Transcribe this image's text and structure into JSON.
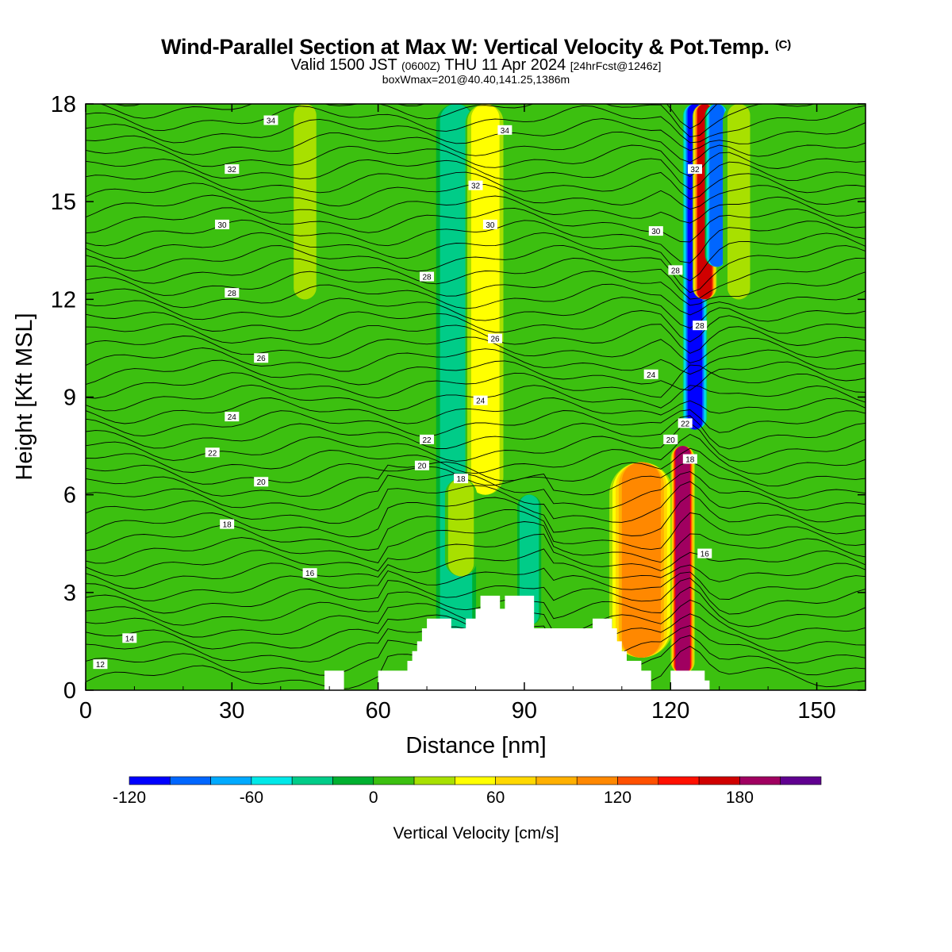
{
  "header": {
    "title": "Wind-Parallel Section at Max W: Vertical Velocity & Pot.Temp.",
    "title_tag": "(C)",
    "valid_prefix": "Valid 1500 JST",
    "valid_utc": "(0600Z)",
    "valid_date": "THU 11 Apr 2024",
    "forecast_tag": "[24hrFcst@1246z]",
    "box_info": "boxWmax=201@40.40,141.25,1386m"
  },
  "chart_data": {
    "type": "heatmap",
    "xlabel": "Distance [nm]",
    "ylabel": "Height [Kft MSL]",
    "xlim": [
      0,
      160
    ],
    "ylim": [
      0,
      18
    ],
    "xticks": [
      0,
      30,
      60,
      90,
      120,
      150
    ],
    "yticks": [
      0,
      3,
      6,
      9,
      12,
      15,
      18
    ],
    "background_velocity": 0,
    "velocity_features": [
      {
        "x": 76,
        "zmin": 0,
        "zmax": 18,
        "halfwidth": 2.5,
        "value": -40
      },
      {
        "x": 82,
        "zmin": 6,
        "zmax": 18,
        "halfwidth": 2.5,
        "value": 55
      },
      {
        "x": 77,
        "zmin": 3.5,
        "zmax": 6.5,
        "halfwidth": 2,
        "value": 35
      },
      {
        "x": 91,
        "zmin": 2,
        "zmax": 6,
        "halfwidth": 1.5,
        "value": -40
      },
      {
        "x": 114,
        "zmin": 1,
        "zmax": 7,
        "halfwidth": 4,
        "value": 110
      },
      {
        "x": 122.5,
        "zmin": 0.5,
        "zmax": 7.5,
        "halfwidth": 1.5,
        "value": 190
      },
      {
        "x": 125,
        "zmin": 8,
        "zmax": 18,
        "halfwidth": 1.5,
        "value": -110
      },
      {
        "x": 127,
        "zmin": 12,
        "zmax": 18,
        "halfwidth": 1.5,
        "value": 160
      },
      {
        "x": 129.5,
        "zmin": 13,
        "zmax": 18,
        "halfwidth": 1.5,
        "value": -100
      },
      {
        "x": 134,
        "zmin": 12,
        "zmax": 18,
        "halfwidth": 2,
        "value": 30
      },
      {
        "x": 45,
        "zmin": 12,
        "zmax": 18,
        "halfwidth": 2,
        "value": 25
      },
      {
        "x": 18,
        "zmin": 8,
        "zmax": 18,
        "halfwidth": 4,
        "value": 8
      }
    ],
    "terrain_profile": [
      [
        49,
        0.6
      ],
      [
        53,
        0.6
      ],
      [
        53,
        0
      ],
      [
        60,
        0
      ],
      [
        60,
        0.6
      ],
      [
        66,
        0.6
      ],
      [
        66,
        0.9
      ],
      [
        67,
        0.9
      ],
      [
        67,
        1.2
      ],
      [
        68,
        1.2
      ],
      [
        68,
        1.5
      ],
      [
        69,
        1.5
      ],
      [
        69,
        1.9
      ],
      [
        70,
        1.9
      ],
      [
        70,
        2.2
      ],
      [
        75,
        2.2
      ],
      [
        75,
        1.9
      ],
      [
        78,
        1.9
      ],
      [
        78,
        2.2
      ],
      [
        80,
        2.2
      ],
      [
        80,
        2.5
      ],
      [
        81,
        2.5
      ],
      [
        81,
        2.9
      ],
      [
        85,
        2.9
      ],
      [
        85,
        2.5
      ],
      [
        86,
        2.5
      ],
      [
        86,
        2.9
      ],
      [
        92,
        2.9
      ],
      [
        92,
        1.9
      ],
      [
        104,
        1.9
      ],
      [
        104,
        2.2
      ],
      [
        108,
        2.2
      ],
      [
        108,
        1.9
      ],
      [
        109,
        1.9
      ],
      [
        109,
        1.5
      ],
      [
        110,
        1.5
      ],
      [
        110,
        1.2
      ],
      [
        111,
        1.2
      ],
      [
        111,
        0.9
      ],
      [
        114,
        0.9
      ],
      [
        114,
        0.6
      ],
      [
        116,
        0.6
      ],
      [
        116,
        0
      ],
      [
        120,
        0
      ],
      [
        120,
        0.6
      ],
      [
        127,
        0.6
      ],
      [
        127,
        0.3
      ],
      [
        128,
        0.3
      ],
      [
        128,
        0
      ]
    ],
    "theta_contours": [
      12,
      14,
      16,
      18,
      20,
      22,
      24,
      26,
      28,
      30,
      32,
      34
    ],
    "theta_labels": [
      {
        "value": "34",
        "x": 38,
        "z": 17.5
      },
      {
        "value": "34",
        "x": 86,
        "z": 17.2
      },
      {
        "value": "32",
        "x": 30,
        "z": 16.0
      },
      {
        "value": "32",
        "x": 80,
        "z": 15.5
      },
      {
        "value": "32",
        "x": 125,
        "z": 16.0
      },
      {
        "value": "30",
        "x": 28,
        "z": 14.3
      },
      {
        "value": "30",
        "x": 83,
        "z": 14.3
      },
      {
        "value": "30",
        "x": 117,
        "z": 14.1
      },
      {
        "value": "28",
        "x": 70,
        "z": 12.7
      },
      {
        "value": "28",
        "x": 30,
        "z": 12.2
      },
      {
        "value": "28",
        "x": 121,
        "z": 12.9
      },
      {
        "value": "28",
        "x": 126,
        "z": 11.2
      },
      {
        "value": "26",
        "x": 36,
        "z": 10.2
      },
      {
        "value": "26",
        "x": 84,
        "z": 10.8
      },
      {
        "value": "24",
        "x": 30,
        "z": 8.4
      },
      {
        "value": "24",
        "x": 81,
        "z": 8.9
      },
      {
        "value": "24",
        "x": 116,
        "z": 9.7
      },
      {
        "value": "22",
        "x": 26,
        "z": 7.3
      },
      {
        "value": "22",
        "x": 70,
        "z": 7.7
      },
      {
        "value": "22",
        "x": 123,
        "z": 8.2
      },
      {
        "value": "20",
        "x": 36,
        "z": 6.4
      },
      {
        "value": "20",
        "x": 69,
        "z": 6.9
      },
      {
        "value": "20",
        "x": 120,
        "z": 7.7
      },
      {
        "value": "18",
        "x": 29,
        "z": 5.1
      },
      {
        "value": "18",
        "x": 77,
        "z": 6.5
      },
      {
        "value": "18",
        "x": 124,
        "z": 7.1
      },
      {
        "value": "16",
        "x": 46,
        "z": 3.6
      },
      {
        "value": "16",
        "x": 127,
        "z": 4.2
      },
      {
        "value": "14",
        "x": 9,
        "z": 1.6
      },
      {
        "value": "12",
        "x": 3,
        "z": 0.8
      }
    ],
    "colorbar": {
      "label": "Vertical Velocity [cm/s]",
      "boundaries": [
        -120,
        -100,
        -80,
        -60,
        -40,
        -20,
        0,
        20,
        40,
        60,
        80,
        100,
        120,
        140,
        160,
        180,
        200,
        220
      ],
      "tick_values": [
        -120,
        -60,
        0,
        60,
        120,
        180
      ],
      "tick_labels": [
        "-120",
        "-60",
        "0",
        "60",
        "120",
        "180"
      ],
      "colors": [
        "#0000ff",
        "#0066ff",
        "#00aaff",
        "#00e8e8",
        "#00cc88",
        "#00b030",
        "#3cc010",
        "#a8e000",
        "#ffff00",
        "#ffd800",
        "#ffb000",
        "#ff8800",
        "#ff5000",
        "#ff1000",
        "#d00000",
        "#a00060",
        "#600090"
      ]
    }
  }
}
